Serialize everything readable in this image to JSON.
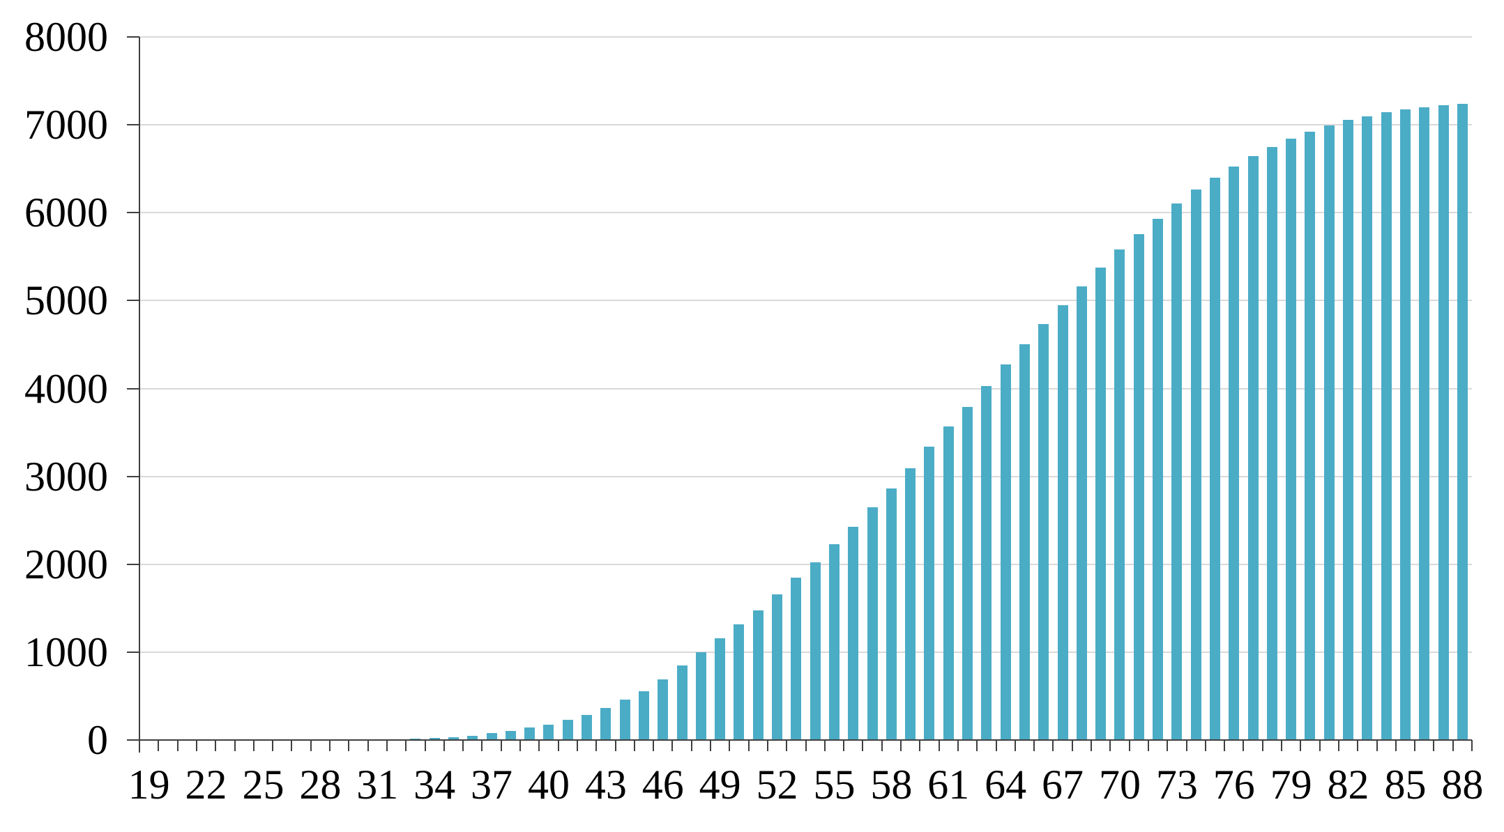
{
  "chart_data": {
    "type": "bar",
    "title": "",
    "xlabel": "",
    "ylabel": "",
    "categories": [
      19,
      20,
      21,
      22,
      23,
      24,
      25,
      26,
      27,
      28,
      29,
      30,
      31,
      32,
      33,
      34,
      35,
      36,
      37,
      38,
      39,
      40,
      41,
      42,
      43,
      44,
      45,
      46,
      47,
      48,
      49,
      50,
      51,
      52,
      53,
      54,
      55,
      56,
      57,
      58,
      59,
      60,
      61,
      62,
      63,
      64,
      65,
      66,
      67,
      68,
      69,
      70,
      71,
      72,
      73,
      74,
      75,
      76,
      77,
      78,
      79,
      80,
      81,
      82,
      83,
      84,
      85,
      86,
      87,
      88
    ],
    "values": [
      0,
      0,
      0,
      0,
      0,
      0,
      0,
      0,
      0,
      0,
      1,
      2,
      4,
      7,
      12,
      20,
      33,
      50,
      80,
      105,
      145,
      172,
      228,
      285,
      365,
      460,
      555,
      690,
      845,
      1000,
      1155,
      1315,
      1475,
      1655,
      1845,
      2025,
      2230,
      2430,
      2650,
      2865,
      3095,
      3335,
      3570,
      3790,
      4030,
      4270,
      4500,
      4730,
      4945,
      5160,
      5375,
      5580,
      5755,
      5930,
      6105,
      6265,
      6395,
      6525,
      6645,
      6745,
      6840,
      6920,
      6995,
      7055,
      7100,
      7140,
      7175,
      7200,
      7220,
      7240
    ],
    "x_tick_labels": [
      "19",
      "22",
      "25",
      "28",
      "31",
      "34",
      "37",
      "40",
      "43",
      "46",
      "49",
      "52",
      "55",
      "58",
      "61",
      "64",
      "67",
      "70",
      "73",
      "76",
      "79",
      "82",
      "85",
      "88"
    ],
    "y_tick_labels": [
      "0",
      "1000",
      "2000",
      "3000",
      "4000",
      "5000",
      "6000",
      "7000",
      "8000"
    ],
    "y_ticks": [
      0,
      1000,
      2000,
      3000,
      4000,
      5000,
      6000,
      7000,
      8000
    ],
    "ylim": [
      0,
      8000
    ],
    "grid": true,
    "legend_position": "none",
    "bar_color": "#4BACC6",
    "gridline_color": "#D9D9D9",
    "axis_color": "#3F3F3F",
    "text_color": "#000000"
  }
}
